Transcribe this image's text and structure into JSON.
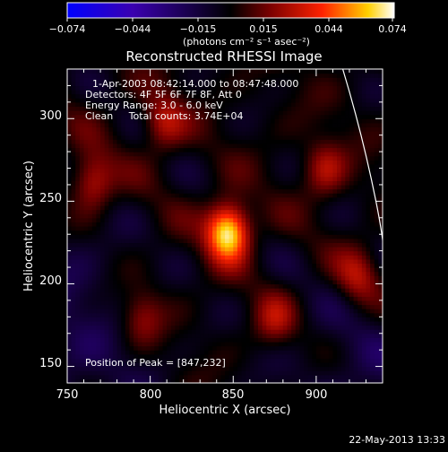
{
  "chart_data": {
    "type": "heatmap",
    "title": "Reconstructed RHESSI Image",
    "xlabel": "Heliocentric X (arcsec)",
    "ylabel": "Heliocentric Y (arcsec)",
    "xlim": [
      750,
      940
    ],
    "ylim": [
      140,
      330
    ],
    "x_ticks": [
      "750",
      "800",
      "850",
      "900"
    ],
    "y_ticks": [
      "150",
      "200",
      "250",
      "300"
    ],
    "colorbar": {
      "label": "(photons cm⁻² s⁻¹ asec⁻²)",
      "range": [
        -0.074,
        0.074
      ],
      "ticks": [
        "−0.074",
        "−0.044",
        "−0.015",
        "0.015",
        "0.044",
        "0.074"
      ]
    },
    "annotations": [
      "1-Apr-2003 08:42:14.000 to 08:47:48.000",
      "Detectors: 4F 5F 6F 7F 8F, Att 0",
      "Energy Range: 3.0 - 6.0 keV",
      "Clean     Total counts: 3.74E+04"
    ],
    "peak_label": "Position of Peak = [847,232]",
    "peak": [
      847,
      232
    ],
    "sources": [
      {
        "x": 847,
        "y": 232,
        "amp": 1.0
      },
      {
        "x": 765,
        "y": 262,
        "amp": 0.45
      },
      {
        "x": 808,
        "y": 298,
        "amp": 0.38
      },
      {
        "x": 905,
        "y": 270,
        "amp": 0.35
      },
      {
        "x": 925,
        "y": 205,
        "amp": 0.35
      },
      {
        "x": 875,
        "y": 178,
        "amp": 0.32
      },
      {
        "x": 795,
        "y": 180,
        "amp": 0.3
      }
    ],
    "limb_curve": [
      [
        916,
        330
      ],
      [
        928,
        290
      ],
      [
        936,
        250
      ],
      [
        940,
        200
      ]
    ]
  },
  "footer": {
    "timestamp": "22-May-2013 13:33"
  }
}
